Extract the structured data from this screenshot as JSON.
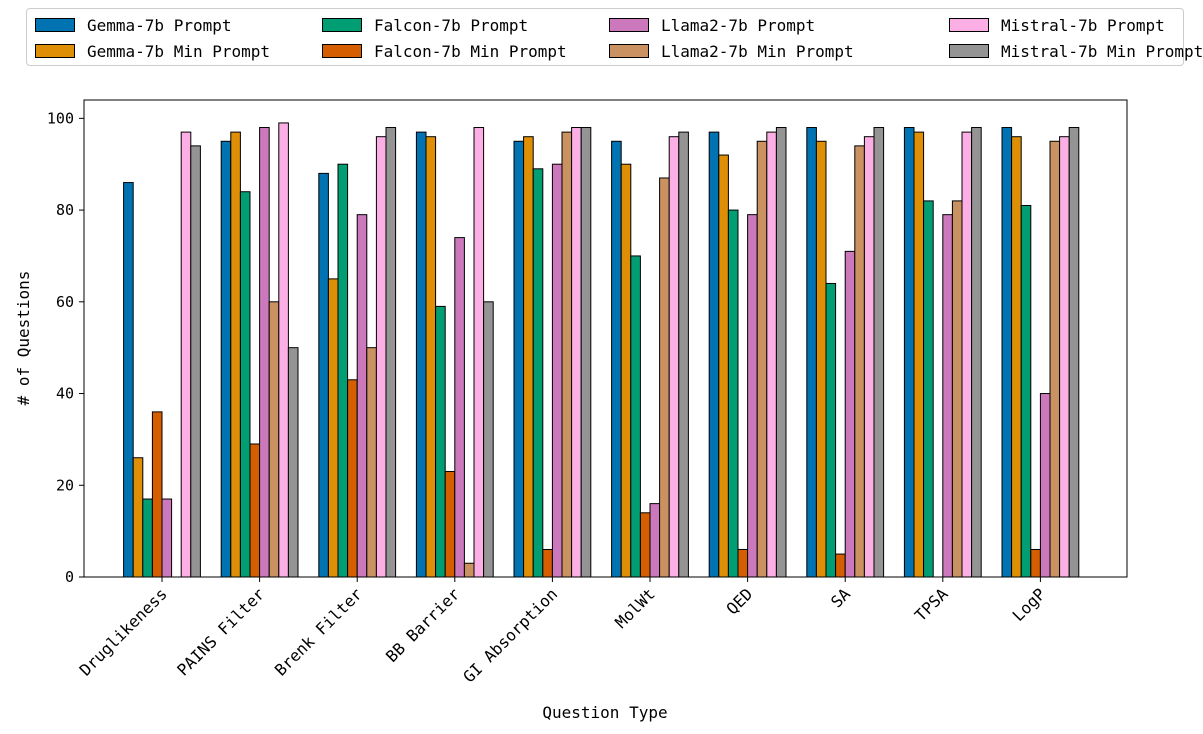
{
  "chart_data": {
    "type": "bar",
    "title": "",
    "xlabel": "Question Type",
    "ylabel": "# of Questions",
    "ylim": [
      0,
      104
    ],
    "yticks": [
      0,
      20,
      40,
      60,
      80,
      100
    ],
    "legend_position": "top",
    "categories": [
      "Druglikeness",
      "PAINS Filter",
      "Brenk Filter",
      "BB Barrier",
      "GI Absorption",
      "MolWt",
      "QED",
      "SA",
      "TPSA",
      "LogP"
    ],
    "series": [
      {
        "name": "Gemma-7b Prompt",
        "color": "#0173b2",
        "values": [
          86,
          95,
          88,
          97,
          95,
          95,
          97,
          98,
          98,
          98
        ]
      },
      {
        "name": "Gemma-7b Min Prompt",
        "color": "#de8f05",
        "values": [
          26,
          97,
          65,
          96,
          96,
          90,
          92,
          95,
          97,
          96
        ]
      },
      {
        "name": "Falcon-7b Prompt",
        "color": "#029e73",
        "values": [
          17,
          84,
          90,
          59,
          89,
          70,
          80,
          64,
          82,
          81
        ]
      },
      {
        "name": "Falcon-7b Min Prompt",
        "color": "#d55e00",
        "values": [
          36,
          29,
          43,
          23,
          6,
          14,
          6,
          5,
          0,
          6
        ]
      },
      {
        "name": "Llama2-7b Prompt",
        "color": "#cc78bc",
        "values": [
          17,
          98,
          79,
          74,
          90,
          16,
          79,
          71,
          79,
          40
        ]
      },
      {
        "name": "Llama2-7b Min Prompt",
        "color": "#ca9161",
        "values": [
          0,
          60,
          50,
          3,
          97,
          87,
          95,
          94,
          82,
          95
        ]
      },
      {
        "name": "Mistral-7b Prompt",
        "color": "#fbafe4",
        "values": [
          97,
          99,
          96,
          98,
          98,
          96,
          97,
          96,
          97,
          96
        ]
      },
      {
        "name": "Mistral-7b Min Prompt",
        "color": "#949494",
        "values": [
          94,
          50,
          98,
          60,
          98,
          97,
          98,
          98,
          98,
          98
        ]
      }
    ]
  }
}
